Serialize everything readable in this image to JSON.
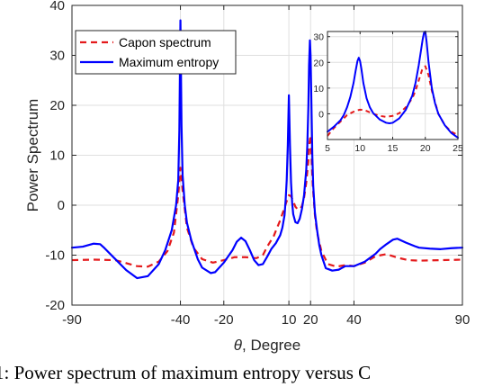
{
  "caption": "1: Power spectrum of maximum entropy versus C",
  "chart_data": [
    {
      "type": "line",
      "xlabel": "θ, Degree",
      "ylabel": "Power Spectrum",
      "xlim": [
        -90,
        90
      ],
      "ylim": [
        -20,
        40
      ],
      "xticks": [
        -90,
        -40,
        -20,
        10,
        20,
        40,
        90
      ],
      "xtick_labels": [
        "-90",
        "-40",
        "-20",
        "10",
        "20",
        "40",
        "90"
      ],
      "yticks": [
        -20,
        -10,
        0,
        10,
        20,
        30,
        40
      ],
      "ytick_labels": [
        "-20",
        "-10",
        "0",
        "10",
        "20",
        "30",
        "40"
      ],
      "grid": true,
      "legend_position": "top-left",
      "series": [
        {
          "name": "Capon spectrum",
          "color": "#e41a1c",
          "style": "dashed",
          "x": [
            -90,
            -80,
            -70,
            -60,
            -55,
            -50,
            -46,
            -43,
            -41,
            -40,
            -39,
            -37,
            -34,
            -30,
            -25,
            -20,
            -15,
            -10,
            -5,
            -2,
            0,
            3,
            6,
            8,
            9,
            10,
            11,
            12,
            13,
            14,
            15,
            16,
            17,
            18,
            19,
            19.5,
            20,
            20.5,
            21,
            22,
            23,
            25,
            28,
            32,
            36,
            40,
            45,
            50,
            55,
            60,
            65,
            70,
            80,
            90
          ],
          "y": [
            -11,
            -10.9,
            -11,
            -12.2,
            -12.3,
            -11.3,
            -9.2,
            -5.5,
            2,
            7.5,
            3,
            -4.5,
            -8.5,
            -10.8,
            -11.5,
            -11,
            -10.4,
            -10.4,
            -10.6,
            -10,
            -8.3,
            -6.2,
            -3,
            -0.5,
            0.8,
            2,
            1.8,
            0.8,
            -0.3,
            -0.8,
            -0.8,
            -0.2,
            1.5,
            4.5,
            9,
            12.5,
            14,
            9,
            4,
            -2,
            -5.5,
            -9.2,
            -11.8,
            -12.3,
            -12,
            -12.2,
            -11.5,
            -10.2,
            -9.8,
            -10.5,
            -11,
            -11.1,
            -11,
            -10.9
          ]
        },
        {
          "name": "Maximum entropy",
          "color": "#0000ff",
          "style": "solid",
          "x": [
            -90,
            -85,
            -80,
            -77,
            -75,
            -70,
            -65,
            -60,
            -55,
            -50,
            -47,
            -44,
            -42,
            -41,
            -40.5,
            -40,
            -39.5,
            -39,
            -38,
            -37,
            -35,
            -32,
            -30,
            -26,
            -24,
            -20,
            -16,
            -14,
            -12,
            -10,
            -8,
            -6,
            -4,
            -2,
            0,
            2,
            4,
            6,
            7,
            8,
            8.5,
            9,
            9.5,
            10,
            10.5,
            11,
            11.5,
            12,
            13,
            14,
            15,
            16,
            17,
            18,
            18.5,
            19,
            19.3,
            19.7,
            20,
            20.4,
            20.8,
            21.2,
            22,
            23,
            24,
            25,
            27,
            30,
            33,
            36,
            40,
            45,
            50,
            52,
            55,
            58,
            60,
            64,
            68,
            70,
            75,
            80,
            85,
            90
          ],
          "y": [
            -8.5,
            -8.3,
            -7.7,
            -7.8,
            -8.6,
            -10.8,
            -13,
            -14.6,
            -14.2,
            -11.8,
            -9,
            -5,
            0,
            5,
            15,
            37,
            16,
            6,
            0,
            -3.5,
            -7,
            -10.8,
            -12.5,
            -13.6,
            -13.4,
            -11.5,
            -9,
            -7.3,
            -6.5,
            -7.2,
            -9,
            -11,
            -12,
            -11.8,
            -10.3,
            -8.7,
            -7.6,
            -6,
            -4.5,
            -2,
            1,
            5,
            12,
            22,
            12,
            4.5,
            0.5,
            -1.8,
            -3.4,
            -3.6,
            -2.7,
            -0.8,
            2,
            7,
            12,
            20,
            28,
            33,
            30,
            20,
            10,
            4,
            -1.5,
            -5,
            -8,
            -10,
            -12.6,
            -13.1,
            -12.9,
            -12.2,
            -12.2,
            -11.3,
            -9.7,
            -8.8,
            -7.8,
            -6.9,
            -6.7,
            -7.5,
            -8.2,
            -8.5,
            -8.7,
            -8.8,
            -8.6,
            -8.5
          ]
        }
      ]
    },
    {
      "type": "line",
      "xlim": [
        5,
        25
      ],
      "ylim": [
        -10,
        32
      ],
      "xticks": [
        5,
        10,
        15,
        20,
        25
      ],
      "xtick_labels": [
        "5",
        "10",
        "15",
        "20",
        "25"
      ],
      "yticks": [
        0,
        10,
        20,
        30
      ],
      "ytick_labels": [
        "0",
        "10",
        "20",
        "30"
      ],
      "grid": true,
      "series": [
        {
          "color": "#e41a1c",
          "style": "dashed",
          "x": [
            5,
            6,
            7,
            8,
            9,
            9.5,
            10,
            10.5,
            11,
            12,
            13,
            14,
            15,
            16,
            17,
            18,
            18.5,
            19,
            19.5,
            20,
            20.5,
            21,
            22,
            23,
            24,
            25
          ],
          "y": [
            -8.6,
            -5.5,
            -3,
            -0.5,
            0.8,
            1.3,
            1.6,
            1.5,
            1.1,
            0,
            -0.8,
            -1.2,
            -0.8,
            0.2,
            2.5,
            6,
            9,
            13,
            17,
            18.5,
            15,
            9,
            0,
            -4.5,
            -7,
            -8.3
          ]
        },
        {
          "color": "#0000ff",
          "style": "solid",
          "x": [
            5,
            6,
            7,
            7.5,
            8,
            8.5,
            9,
            9.3,
            9.6,
            9.8,
            10,
            10.2,
            10.5,
            11,
            11.5,
            12,
            13,
            14,
            14.5,
            15,
            16,
            17,
            18,
            18.5,
            19,
            19.3,
            19.6,
            19.8,
            20,
            20.2,
            20.5,
            21,
            21.5,
            22,
            23,
            24,
            25
          ],
          "y": [
            -7,
            -5,
            -2.5,
            -0.5,
            2.5,
            6.5,
            12,
            16.5,
            20.5,
            21.8,
            20.5,
            17.5,
            12,
            6,
            2.5,
            0.3,
            -2.2,
            -3.5,
            -3.7,
            -3.5,
            -1.8,
            1.5,
            7,
            12,
            19,
            24,
            29,
            31.5,
            32,
            28,
            20,
            10,
            4,
            0,
            -4.5,
            -7.5,
            -9.3
          ]
        }
      ]
    }
  ],
  "colors": {
    "axis": "#262626",
    "grid": "#dfdfdf",
    "capon": "#e41a1c",
    "maxent": "#0000ff"
  }
}
